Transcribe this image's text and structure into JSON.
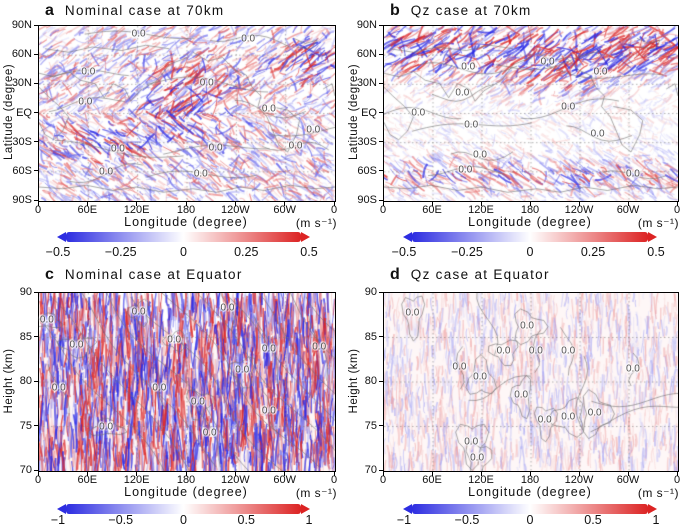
{
  "figure": {
    "panels": [
      {
        "letter": "a",
        "title": "Nominal case at 70km",
        "xlabel": "Longitude (degree)",
        "ylabel": "Latitude (degree)",
        "unit": "(m s⁻¹)",
        "xticks": [
          "0",
          "60E",
          "120E",
          "180",
          "120W",
          "60W",
          "0"
        ],
        "yticks": [
          "90N",
          "60N",
          "30N",
          "EQ",
          "30S",
          "60S",
          "90S"
        ],
        "colorbar_ticks": [
          "−0.5",
          "−0.25",
          "0",
          "0.25",
          "0.5"
        ],
        "contour_label": "0.0",
        "contour_labels": [
          [
            34,
            5
          ],
          [
            71,
            8
          ],
          [
            17,
            27
          ],
          [
            57,
            33
          ],
          [
            16,
            44
          ],
          [
            78,
            48
          ],
          [
            93,
            60
          ],
          [
            27,
            71
          ],
          [
            60,
            70
          ],
          [
            87,
            69
          ],
          [
            55,
            85
          ],
          [
            23,
            84
          ]
        ]
      },
      {
        "letter": "b",
        "title": "Qz case at 70km",
        "xlabel": "Longitude (degree)",
        "ylabel": "Latitude (degree)",
        "unit": "(m s⁻¹)",
        "xticks": [
          "0",
          "60E",
          "120E",
          "180",
          "120W",
          "60W",
          "0"
        ],
        "yticks": [
          "90N",
          "60N",
          "30N",
          "EQ",
          "30S",
          "60S",
          "90S"
        ],
        "colorbar_ticks": [
          "−0.5",
          "−0.25",
          "0",
          "0.25",
          "0.5"
        ],
        "contour_label": "0.0",
        "contour_labels": [
          [
            29,
            24
          ],
          [
            56,
            21
          ],
          [
            74,
            27
          ],
          [
            27,
            39
          ],
          [
            12,
            50
          ],
          [
            30,
            57
          ],
          [
            63,
            47
          ],
          [
            33,
            74
          ],
          [
            28,
            83
          ],
          [
            85,
            85
          ],
          [
            73,
            62
          ]
        ]
      },
      {
        "letter": "c",
        "title": "Nominal case at Equator",
        "xlabel": "Longitude (degree)",
        "ylabel": "Height (km)",
        "unit": "(m s⁻¹)",
        "xticks": [
          "0",
          "60E",
          "120E",
          "180",
          "120W",
          "60W",
          "0"
        ],
        "yticks": [
          "90",
          "85",
          "80",
          "75",
          "70"
        ],
        "colorbar_ticks": [
          "−1",
          "−0.5",
          "0",
          "0.5",
          "1"
        ],
        "contour_label": "0.0",
        "contour_labels": [
          [
            3,
            16
          ],
          [
            34,
            11
          ],
          [
            64,
            9
          ],
          [
            13,
            30
          ],
          [
            46,
            27
          ],
          [
            78,
            32
          ],
          [
            95,
            31
          ],
          [
            7,
            54
          ],
          [
            41,
            54
          ],
          [
            54,
            62
          ],
          [
            69,
            44
          ],
          [
            23,
            76
          ],
          [
            58,
            79
          ],
          [
            78,
            67
          ]
        ]
      },
      {
        "letter": "d",
        "title": "Qz case at Equator",
        "xlabel": "Longitude (degree)",
        "ylabel": "Height (km)",
        "unit": "(m s⁻¹)",
        "xticks": [
          "0",
          "60E",
          "120E",
          "180",
          "120W",
          "60W",
          "0"
        ],
        "yticks": [
          "90",
          "85",
          "80",
          "75",
          "70"
        ],
        "colorbar_ticks": [
          "−1",
          "−0.5",
          "0",
          "0.5",
          "1"
        ],
        "contour_label": "0.0",
        "contour_labels": [
          [
            10,
            12
          ],
          [
            49,
            19
          ],
          [
            41,
            33
          ],
          [
            52,
            33
          ],
          [
            63,
            33
          ],
          [
            26,
            42
          ],
          [
            85,
            43
          ],
          [
            33,
            48
          ],
          [
            55,
            72
          ],
          [
            63,
            70
          ],
          [
            72,
            68
          ],
          [
            30,
            84
          ],
          [
            32,
            93
          ],
          [
            47,
            58
          ]
        ]
      }
    ],
    "colors": {
      "negative_end": "#2d2de1",
      "zero": "#ffffff",
      "positive_end": "#dc2323",
      "contour": "#777777",
      "grid": "#999999"
    }
  },
  "chart_data": [
    {
      "type": "heatmap",
      "panel": "a",
      "title": "Nominal case at 70km",
      "xlabel": "Longitude (degree)",
      "ylabel": "Latitude (degree)",
      "x_ticks": [
        "0",
        "60E",
        "120E",
        "180",
        "120W",
        "60W",
        "0"
      ],
      "y_ticks": [
        "90N",
        "60N",
        "30N",
        "EQ",
        "30S",
        "60S",
        "90S"
      ],
      "value_unit": "m s⁻¹",
      "value_range": [
        -0.5,
        0.5
      ],
      "colorbar_ticks": [
        -0.5,
        -0.25,
        0,
        0.25,
        0.5
      ],
      "colormap": [
        "blue",
        "white",
        "red"
      ],
      "overlay_contour_levels": [
        0.0
      ],
      "grid": "dotted 30deg latitude x 60deg longitude",
      "content": "Small-scale wind perturbation field over a world map with coastlines; strongest wave activity near 20N-40N around 120E-180 and near 60N over 60W; 0.0 contours labeled throughout"
    },
    {
      "type": "heatmap",
      "panel": "b",
      "title": "Qz case at 70km",
      "xlabel": "Longitude (degree)",
      "ylabel": "Latitude (degree)",
      "x_ticks": [
        "0",
        "60E",
        "120E",
        "180",
        "120W",
        "60W",
        "0"
      ],
      "y_ticks": [
        "90N",
        "60N",
        "30N",
        "EQ",
        "30S",
        "60S",
        "90S"
      ],
      "value_unit": "m s⁻¹",
      "value_range": [
        -0.5,
        0.5
      ],
      "colorbar_ticks": [
        -0.5,
        -0.25,
        0,
        0.25,
        0.5
      ],
      "colormap": [
        "blue",
        "white",
        "red"
      ],
      "overlay_contour_levels": [
        0.0
      ],
      "grid": "dotted 30deg latitude x 60deg longitude",
      "content": "Wind perturbations concentrated in zonal streaks poleward of 60N and near 60S-70S; tropics mostly quiet; 0.0 contours labeled"
    },
    {
      "type": "heatmap",
      "panel": "c",
      "title": "Nominal case at Equator",
      "xlabel": "Longitude (degree)",
      "ylabel": "Height (km)",
      "x_ticks": [
        "0",
        "60E",
        "120E",
        "180",
        "120W",
        "60W",
        "0"
      ],
      "y_ticks": [
        90,
        85,
        80,
        75,
        70
      ],
      "y_range": [
        70,
        90
      ],
      "value_unit": "m s⁻¹",
      "value_range": [
        -1,
        1
      ],
      "colorbar_ticks": [
        -1,
        -0.5,
        0,
        0.5,
        1
      ],
      "colormap": [
        "blue",
        "white",
        "red"
      ],
      "overlay_contour_levels": [
        0.0
      ],
      "grid": "dotted 5km height x 60deg longitude",
      "content": "Height-longitude section at the Equator with dense vertically-striated red/blue perturbations and many descending gray phase-line contours labeled 0.0"
    },
    {
      "type": "heatmap",
      "panel": "d",
      "title": "Qz case at Equator",
      "xlabel": "Longitude (degree)",
      "ylabel": "Height (km)",
      "x_ticks": [
        "0",
        "60E",
        "120E",
        "180",
        "120W",
        "60W",
        "0"
      ],
      "y_ticks": [
        90,
        85,
        80,
        75,
        70
      ],
      "y_range": [
        70,
        90
      ],
      "value_unit": "m s⁻¹",
      "value_range": [
        -1,
        1
      ],
      "colorbar_ticks": [
        -1,
        -0.5,
        0,
        0.5,
        1
      ],
      "colormap": [
        "blue",
        "white",
        "red"
      ],
      "overlay_contour_levels": [
        0.0
      ],
      "grid": "dotted 5km height x 60deg longitude",
      "content": "Height-longitude section at the Equator with much weaker, pale perturbations and scattered closed 0.0 contour blobs"
    }
  ]
}
